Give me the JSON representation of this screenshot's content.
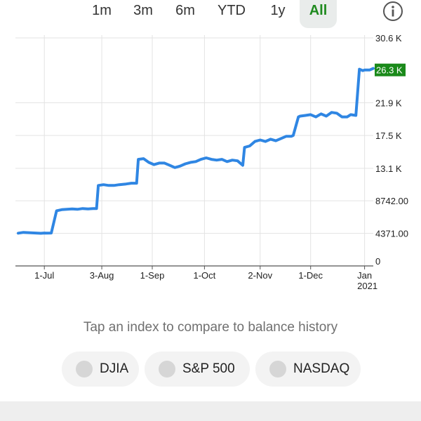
{
  "range_tabs": [
    {
      "label": "1m"
    },
    {
      "label": "3m"
    },
    {
      "label": "6m"
    },
    {
      "label": "YTD"
    },
    {
      "label": "1y"
    },
    {
      "label": "All",
      "active": true
    }
  ],
  "info_icon": "info-icon",
  "chart_data": {
    "type": "line",
    "y_ticks": [
      "30.6 K",
      "21.9 K",
      "17.5 K",
      "13.1 K",
      "8742.00",
      "4371.00",
      "0"
    ],
    "y_tick_values": [
      30600,
      21900,
      17500,
      13100,
      8742,
      4371,
      0
    ],
    "current_value_label": "26.3 K",
    "current_value": 26300,
    "x_ticks": [
      "1-Jul",
      "3-Aug",
      "1-Sep",
      "1-Oct",
      "2-Nov",
      "1-Dec",
      "Jan",
      "2021"
    ],
    "x_tick_dates": [
      "2020-07-01",
      "2020-08-03",
      "2020-09-01",
      "2020-10-01",
      "2020-11-02",
      "2020-12-01",
      "2021-01-01"
    ],
    "ylim": [
      0,
      30600
    ],
    "grid": true,
    "colors": {
      "line": "#2f86e3",
      "current_label_bg": "#1a8a1a",
      "grid": "#e3e3e3"
    },
    "series": [
      {
        "x": [
          "2020-06-16",
          "2020-06-19",
          "2020-06-23",
          "2020-06-26",
          "2020-06-29",
          "2020-07-01",
          "2020-07-02",
          "2020-07-05",
          "2020-07-08",
          "2020-07-11",
          "2020-07-14",
          "2020-07-17",
          "2020-07-20",
          "2020-07-23",
          "2020-07-26",
          "2020-07-29",
          "2020-07-31",
          "2020-08-01",
          "2020-08-04",
          "2020-08-07",
          "2020-08-10",
          "2020-08-13",
          "2020-08-17",
          "2020-08-20",
          "2020-08-23",
          "2020-08-24",
          "2020-08-27",
          "2020-08-30",
          "2020-09-02",
          "2020-09-05",
          "2020-09-08",
          "2020-09-11",
          "2020-09-14",
          "2020-09-17",
          "2020-09-20",
          "2020-09-23",
          "2020-09-26",
          "2020-09-29",
          "2020-10-02",
          "2020-10-05",
          "2020-10-08",
          "2020-10-11",
          "2020-10-14",
          "2020-10-17",
          "2020-10-20",
          "2020-10-23",
          "2020-10-24",
          "2020-10-27",
          "2020-10-30",
          "2020-11-02",
          "2020-11-05",
          "2020-11-08",
          "2020-11-11",
          "2020-11-14",
          "2020-11-17",
          "2020-11-20",
          "2020-11-21",
          "2020-11-24",
          "2020-11-25",
          "2020-11-28",
          "2020-12-01",
          "2020-12-04",
          "2020-12-07",
          "2020-12-10",
          "2020-12-13",
          "2020-12-16",
          "2020-12-19",
          "2020-12-22",
          "2020-12-24",
          "2020-12-27",
          "2020-12-29",
          "2020-12-31",
          "2021-01-01",
          "2021-01-04",
          "2021-01-06"
        ],
        "y": [
          4400,
          4500,
          4450,
          4420,
          4380,
          4420,
          4400,
          4420,
          7400,
          7550,
          7600,
          7650,
          7600,
          7700,
          7650,
          7700,
          7700,
          10800,
          10900,
          10800,
          10800,
          10900,
          11000,
          11100,
          11100,
          14300,
          14400,
          13900,
          13600,
          13800,
          13800,
          13500,
          13200,
          13400,
          13700,
          13900,
          14000,
          14300,
          14500,
          14300,
          14200,
          14300,
          14000,
          14200,
          14100,
          13500,
          15900,
          16100,
          16700,
          16900,
          16700,
          17000,
          16800,
          17100,
          17400,
          17400,
          17500,
          20000,
          20100,
          20200,
          20300,
          20000,
          20400,
          20100,
          20600,
          20500,
          20000,
          20000,
          20300,
          20200,
          26400,
          26200,
          26300,
          26300,
          26500
        ]
      }
    ]
  },
  "compare": {
    "prompt": "Tap an index to compare to balance history",
    "indexes": [
      {
        "label": "DJIA"
      },
      {
        "label": "S&P 500"
      },
      {
        "label": "NASDAQ"
      }
    ]
  }
}
